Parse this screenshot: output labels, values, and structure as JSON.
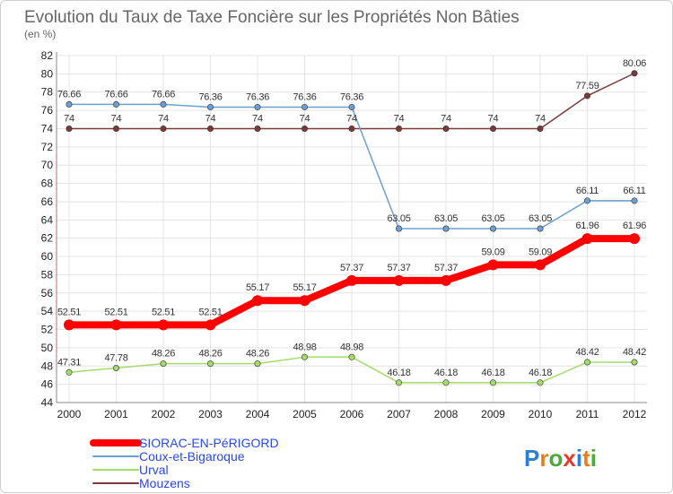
{
  "chart_data": {
    "type": "line",
    "title": "Evolution du Taux de Taxe Foncière sur les Propriétés Non Bâties",
    "subtitle": "(en %)",
    "xlabel": "",
    "ylabel": "",
    "ylim": [
      44,
      82
    ],
    "y_ticks": [
      44,
      46,
      48,
      50,
      52,
      54,
      56,
      58,
      60,
      62,
      64,
      66,
      68,
      70,
      72,
      74,
      76,
      78,
      80,
      82
    ],
    "categories": [
      "2000",
      "2001",
      "2002",
      "2003",
      "2004",
      "2005",
      "2006",
      "2007",
      "2008",
      "2009",
      "2010",
      "2011",
      "2012"
    ],
    "grid": true,
    "legend_position": "bottom-left",
    "series": [
      {
        "name": "SIORAC-EN-PéRIGORD",
        "color": "#ff0000",
        "values": [
          52.51,
          52.51,
          52.51,
          52.51,
          55.17,
          55.17,
          57.37,
          57.37,
          57.37,
          59.09,
          59.09,
          61.96,
          61.96
        ],
        "labels": [
          "52.51",
          "52.51",
          "52.51",
          "52.51",
          "55.17",
          "55.17",
          "57.37",
          "57.37",
          "57.37",
          "59.09",
          "59.09",
          "61.96",
          "61.96"
        ]
      },
      {
        "name": "Coux-et-Bigaroque",
        "color": "#6c9fd1",
        "values": [
          76.66,
          76.66,
          76.66,
          76.36,
          76.36,
          76.36,
          76.36,
          63.05,
          63.05,
          63.05,
          63.05,
          66.11,
          66.11
        ],
        "labels": [
          "76.66",
          "76.66",
          "76.66",
          "76.36",
          "76.36",
          "76.36",
          "76.36",
          "63.05",
          "63.05",
          "63.05",
          "63.05",
          "66.11",
          "66.11"
        ]
      },
      {
        "name": "Urval",
        "color": "#a4dc6a",
        "values": [
          47.31,
          47.78,
          48.26,
          48.26,
          48.26,
          48.98,
          48.98,
          46.18,
          46.18,
          46.18,
          46.18,
          48.42,
          48.42
        ],
        "labels": [
          "47.31",
          "47.78",
          "48.26",
          "48.26",
          "48.26",
          "48.98",
          "48.98",
          "46.18",
          "46.18",
          "46.18",
          "46.18",
          "48.42",
          "48.42"
        ]
      },
      {
        "name": "Mouzens",
        "color": "#7a3a3a",
        "values": [
          74,
          74,
          74,
          74,
          74,
          74,
          74,
          74,
          74,
          74,
          74,
          77.59,
          80.06
        ],
        "labels": [
          "74",
          "74",
          "74",
          "74",
          "74",
          "74",
          "74",
          "74",
          "74",
          "74",
          "74",
          "77.59",
          "80.06"
        ]
      }
    ]
  },
  "branding": {
    "logo_text": "Proxiti",
    "logo_letters": [
      "P",
      "r",
      "o",
      "x",
      "i",
      "t",
      "i"
    ],
    "logo_colors": [
      "#2b7fd4",
      "#e2811c",
      "#4aa83c",
      "#e23a2e",
      "#2b7fd4",
      "#e2811c",
      "#4aa83c"
    ]
  },
  "colors": {
    "title": "#666666",
    "grid": "#e4e4e4",
    "axis": "#888888",
    "legend_text": "#2a48e8"
  }
}
